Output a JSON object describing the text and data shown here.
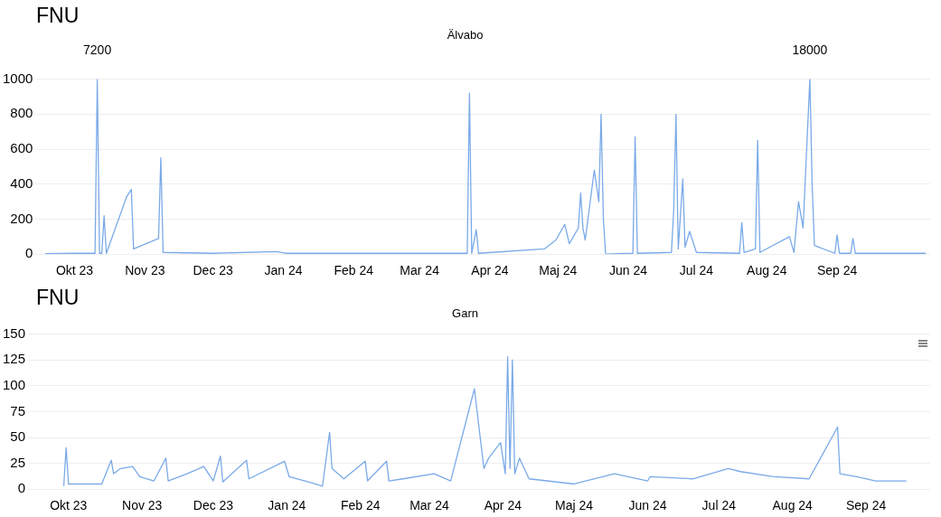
{
  "chart_data": [
    {
      "type": "line",
      "title": "Älvabo",
      "ylabel": "FNU",
      "grid": "y",
      "marker": "none",
      "xlim": [
        "2023-09-17",
        "2024-10-12"
      ],
      "ylim": [
        0,
        1000
      ],
      "yticks": [
        0,
        200,
        400,
        600,
        800,
        1000
      ],
      "xticks": [
        {
          "value": "2023-10-01",
          "label": "Okt 23"
        },
        {
          "value": "2023-11-01",
          "label": "Nov 23"
        },
        {
          "value": "2023-12-01",
          "label": "Dec 23"
        },
        {
          "value": "2024-01-01",
          "label": "Jan 24"
        },
        {
          "value": "2024-02-01",
          "label": "Feb 24"
        },
        {
          "value": "2024-03-01",
          "label": "Mar 24"
        },
        {
          "value": "2024-04-01",
          "label": "Apr 24"
        },
        {
          "value": "2024-05-01",
          "label": "Maj 24"
        },
        {
          "value": "2024-06-01",
          "label": "Jun 24"
        },
        {
          "value": "2024-07-01",
          "label": "Jul 24"
        },
        {
          "value": "2024-08-01",
          "label": "Aug 24"
        },
        {
          "value": "2024-09-01",
          "label": "Sep 24"
        }
      ],
      "annotations": [
        {
          "text": "7200",
          "x": "2023-10-11",
          "y": 1000
        },
        {
          "text": "18000",
          "x": "2024-08-20",
          "y": 1000
        }
      ],
      "series": [
        {
          "color": "#7aaae8",
          "x": [
            "2023-09-18",
            "2023-10-01",
            "2023-10-10",
            "2023-10-11",
            "2023-10-12",
            "2023-10-13",
            "2023-10-14",
            "2023-10-15",
            "2023-10-24",
            "2023-10-26",
            "2023-10-27",
            "2023-11-07",
            "2023-11-08",
            "2023-11-09",
            "2023-12-01",
            "2023-12-29",
            "2024-01-02",
            "2024-03-01",
            "2024-03-22",
            "2024-03-23",
            "2024-03-24",
            "2024-03-26",
            "2024-03-27",
            "2024-04-25",
            "2024-04-30",
            "2024-05-04",
            "2024-05-06",
            "2024-05-10",
            "2024-05-11",
            "2024-05-12",
            "2024-05-13",
            "2024-05-17",
            "2024-05-19",
            "2024-05-20",
            "2024-05-21",
            "2024-05-22",
            "2024-06-03",
            "2024-06-04",
            "2024-06-05",
            "2024-06-20",
            "2024-06-21",
            "2024-06-22",
            "2024-06-23",
            "2024-06-25",
            "2024-06-26",
            "2024-06-28",
            "2024-07-01",
            "2024-07-20",
            "2024-07-21",
            "2024-07-22",
            "2024-07-27",
            "2024-07-28",
            "2024-07-29",
            "2024-08-11",
            "2024-08-13",
            "2024-08-15",
            "2024-08-17",
            "2024-08-20",
            "2024-08-21",
            "2024-08-22",
            "2024-08-31",
            "2024-09-01",
            "2024-09-02",
            "2024-09-07",
            "2024-09-08",
            "2024-09-09",
            "2024-10-10"
          ],
          "values": [
            3,
            5,
            5,
            1000,
            5,
            5,
            220,
            5,
            330,
            370,
            30,
            90,
            550,
            10,
            5,
            15,
            5,
            5,
            5,
            920,
            5,
            140,
            5,
            30,
            80,
            170,
            60,
            150,
            350,
            150,
            80,
            480,
            300,
            800,
            200,
            0,
            5,
            670,
            5,
            10,
            250,
            800,
            30,
            430,
            40,
            130,
            10,
            5,
            180,
            10,
            30,
            650,
            10,
            100,
            10,
            300,
            150,
            1000,
            400,
            50,
            5,
            110,
            5,
            5,
            90,
            5,
            5
          ]
        }
      ]
    },
    {
      "type": "line",
      "title": "Garn",
      "ylabel": "FNU",
      "grid": "y",
      "marker": "none",
      "xlim": [
        "2023-09-17",
        "2024-09-28"
      ],
      "ylim": [
        0,
        150
      ],
      "yticks": [
        0,
        25,
        50,
        75,
        100,
        125,
        150
      ],
      "xticks": [
        {
          "value": "2023-10-01",
          "label": "Okt 23"
        },
        {
          "value": "2023-11-01",
          "label": "Nov 23"
        },
        {
          "value": "2023-12-01",
          "label": "Dec 23"
        },
        {
          "value": "2024-01-01",
          "label": "Jan 24"
        },
        {
          "value": "2024-02-01",
          "label": "Feb 24"
        },
        {
          "value": "2024-03-01",
          "label": "Mar 24"
        },
        {
          "value": "2024-04-01",
          "label": "Apr 24"
        },
        {
          "value": "2024-05-01",
          "label": "Maj 24"
        },
        {
          "value": "2024-06-01",
          "label": "Jun 24"
        },
        {
          "value": "2024-07-01",
          "label": "Jul 24"
        },
        {
          "value": "2024-08-01",
          "label": "Aug 24"
        },
        {
          "value": "2024-09-01",
          "label": "Sep 24"
        }
      ],
      "series": [
        {
          "color": "#7aaae8",
          "x": [
            "2023-09-29",
            "2023-09-30",
            "2023-10-01",
            "2023-10-15",
            "2023-10-19",
            "2023-10-20",
            "2023-10-23",
            "2023-10-28",
            "2023-10-31",
            "2023-11-06",
            "2023-11-11",
            "2023-11-12",
            "2023-11-20",
            "2023-11-27",
            "2023-12-01",
            "2023-12-04",
            "2023-12-05",
            "2023-12-15",
            "2023-12-16",
            "2023-12-31",
            "2024-01-02",
            "2024-01-10",
            "2024-01-16",
            "2024-01-19",
            "2024-01-20",
            "2024-01-25",
            "2024-02-03",
            "2024-02-04",
            "2024-02-12",
            "2024-02-13",
            "2024-02-19",
            "2024-03-03",
            "2024-03-10",
            "2024-03-20",
            "2024-03-24",
            "2024-03-26",
            "2024-03-31",
            "2024-04-02",
            "2024-04-03",
            "2024-04-04",
            "2024-04-05",
            "2024-04-06",
            "2024-04-08",
            "2024-04-12",
            "2024-05-01",
            "2024-05-18",
            "2024-06-01",
            "2024-06-02",
            "2024-06-20",
            "2024-07-05",
            "2024-07-10",
            "2024-07-24",
            "2024-08-08",
            "2024-08-20",
            "2024-08-21",
            "2024-08-28",
            "2024-09-05",
            "2024-09-18"
          ],
          "values": [
            3,
            40,
            5,
            5,
            28,
            15,
            20,
            22,
            12,
            8,
            30,
            8,
            15,
            22,
            8,
            32,
            7,
            28,
            10,
            27,
            12,
            7,
            3,
            55,
            20,
            10,
            27,
            8,
            27,
            8,
            10,
            15,
            8,
            97,
            20,
            30,
            45,
            15,
            128,
            20,
            125,
            15,
            30,
            10,
            5,
            15,
            8,
            12,
            10,
            20,
            17,
            12,
            10,
            60,
            15,
            12,
            8,
            8
          ]
        }
      ]
    }
  ]
}
